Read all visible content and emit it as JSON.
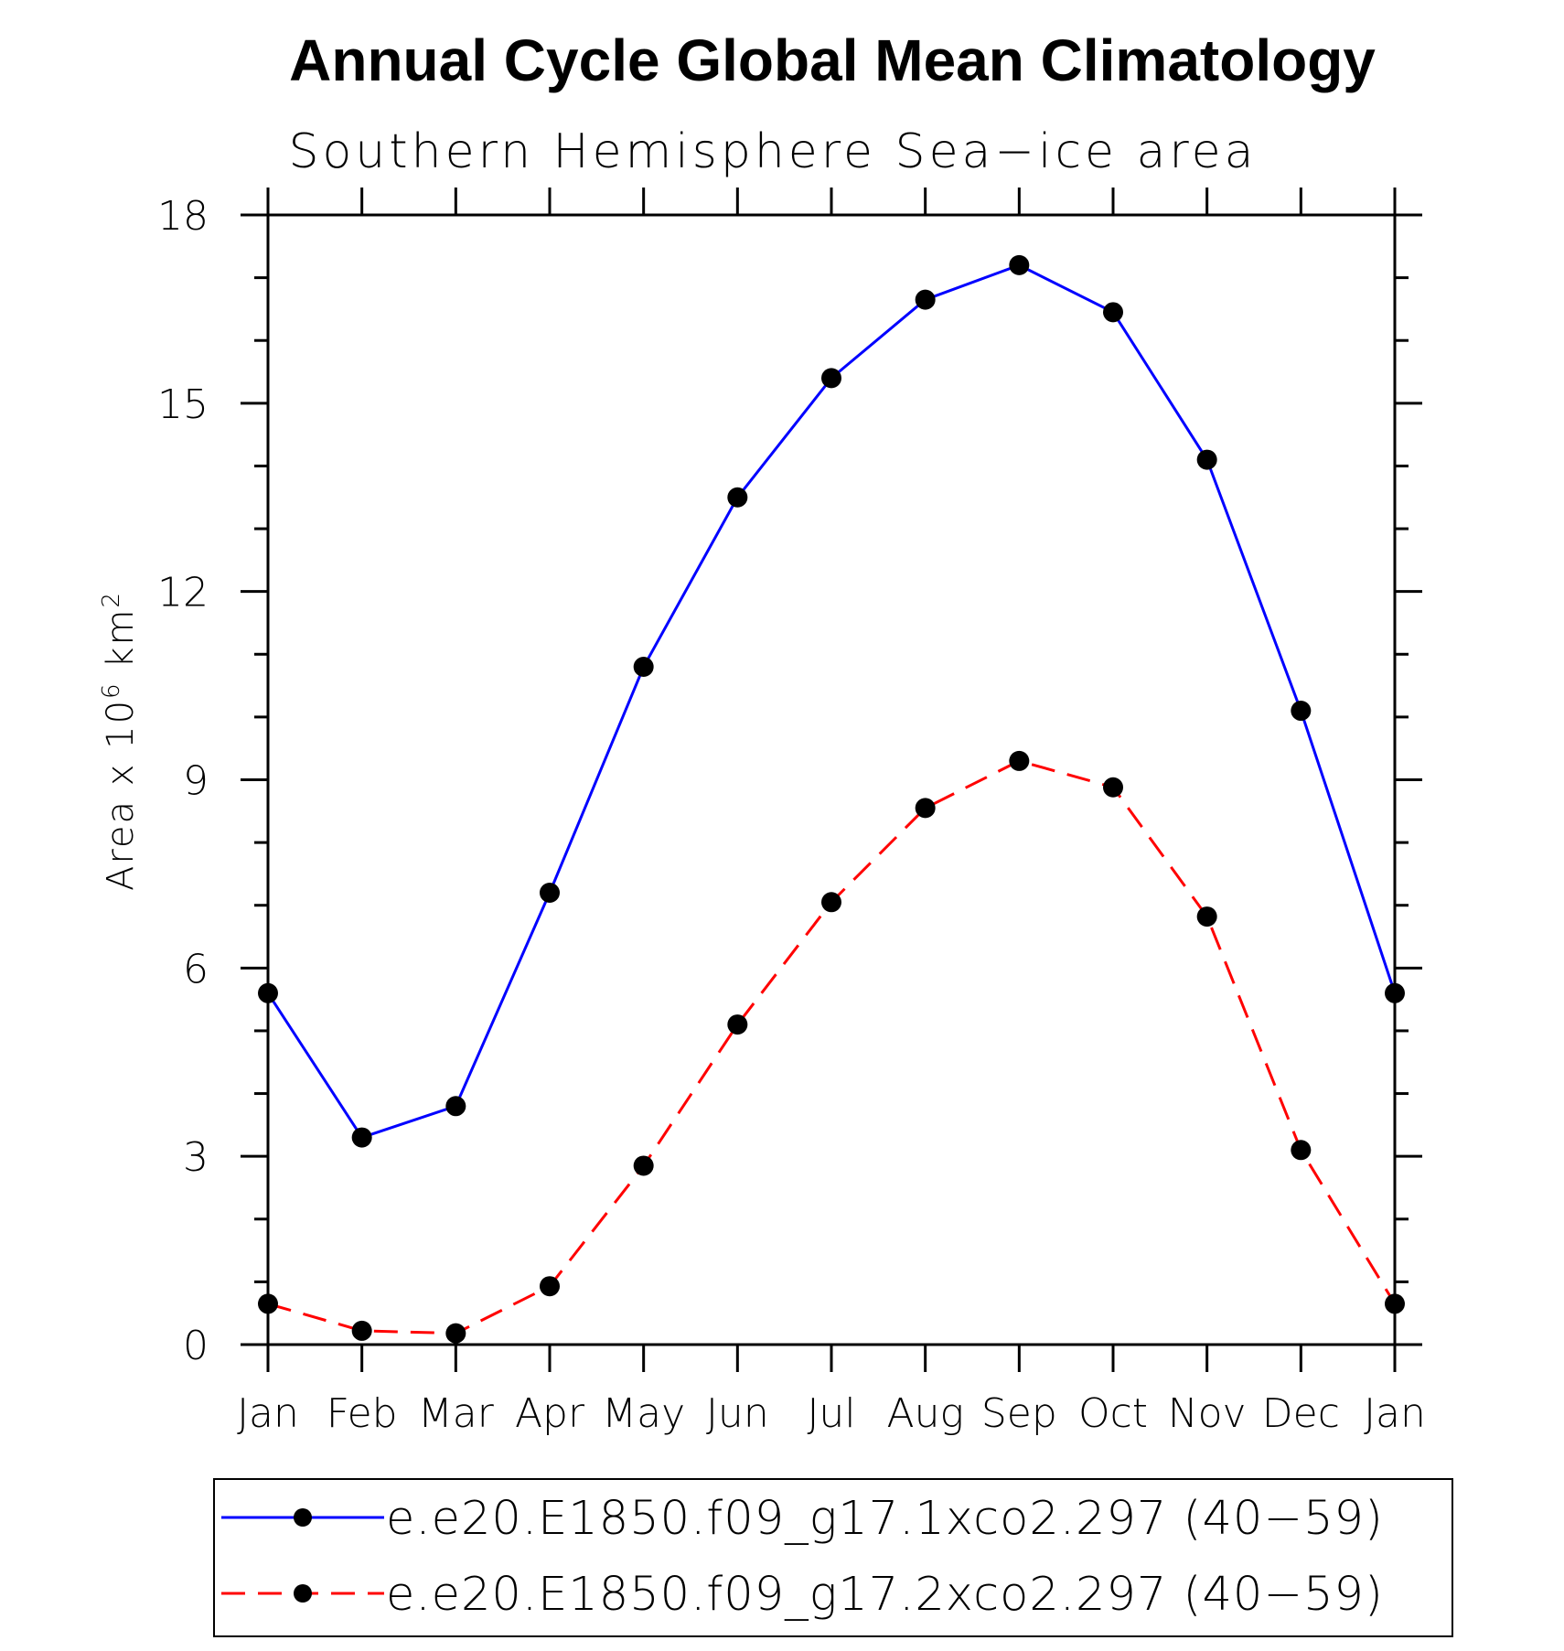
{
  "chart_data": {
    "type": "line",
    "title": "Annual Cycle Global Mean Climatology",
    "subtitle": "Southern Hemisphere Sea−ice area",
    "ylabel": {
      "prefix": "Area x 10",
      "exponent1": "6",
      "middle": " km",
      "exponent2": "2"
    },
    "ylim": [
      0,
      18
    ],
    "yticks": [
      "0",
      "3",
      "6",
      "9",
      "12",
      "15",
      "18"
    ],
    "categories": [
      "Jan",
      "Feb",
      "Mar",
      "Apr",
      "May",
      "Jun",
      "Jul",
      "Aug",
      "Sep",
      "Oct",
      "Nov",
      "Dec",
      "Jan"
    ],
    "series": [
      {
        "name": "e.e20.E1850.f09_g17.1xco2.297 (40−59)",
        "color": "#0000ff",
        "dash": "solid",
        "values": [
          5.6,
          3.3,
          3.8,
          7.2,
          10.8,
          13.5,
          15.4,
          16.65,
          17.2,
          16.45,
          14.1,
          10.1,
          5.6
        ]
      },
      {
        "name": "e.e20.E1850.f09_g17.2xco2.297 (40−59)",
        "color": "#ff0000",
        "dash": "dashed",
        "values": [
          0.65,
          0.22,
          0.18,
          0.93,
          2.85,
          5.1,
          7.05,
          8.55,
          9.3,
          8.88,
          6.82,
          3.1,
          0.65
        ]
      }
    ],
    "legend_position": "bottom"
  }
}
